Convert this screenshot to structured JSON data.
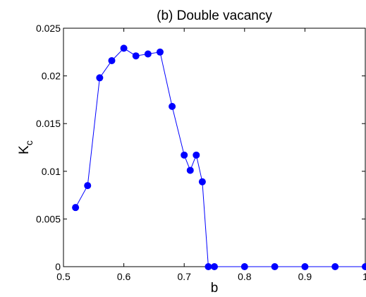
{
  "chart_data": {
    "type": "line",
    "title": "(b) Double vacancy",
    "xlabel": "b",
    "ylabel": "K",
    "ylabel_subscript": "c",
    "xlim": [
      0.5,
      1.0
    ],
    "ylim": [
      0,
      0.025
    ],
    "xticks": [
      0.5,
      0.6,
      0.7,
      0.8,
      0.9,
      1.0
    ],
    "xtick_labels": [
      "0.5",
      "0.6",
      "0.7",
      "0.8",
      "0.9",
      "1"
    ],
    "yticks": [
      0,
      0.005,
      0.01,
      0.015,
      0.02,
      0.025
    ],
    "ytick_labels": [
      "0",
      "0.005",
      "0.01",
      "0.015",
      "0.02",
      "0.025"
    ],
    "grid": false,
    "series": [
      {
        "color": "#0000ff",
        "marker": "circle",
        "x": [
          0.52,
          0.54,
          0.56,
          0.58,
          0.6,
          0.62,
          0.64,
          0.66,
          0.68,
          0.7,
          0.71,
          0.72,
          0.73,
          0.74,
          0.75,
          0.8,
          0.85,
          0.9,
          0.95,
          1.0
        ],
        "y": [
          0.0062,
          0.0085,
          0.0198,
          0.0216,
          0.0229,
          0.0221,
          0.0223,
          0.0225,
          0.0168,
          0.0117,
          0.0101,
          0.0117,
          0.0089,
          0.0,
          0.0,
          0.0,
          0.0,
          0.0,
          0.0,
          0.0
        ]
      }
    ]
  }
}
